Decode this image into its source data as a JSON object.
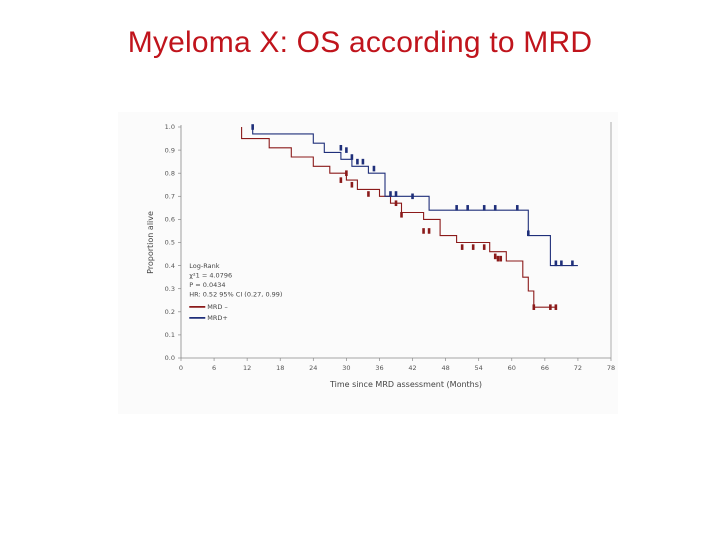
{
  "slide": {
    "title": "Myeloma X: OS according to MRD"
  },
  "chart_data": {
    "type": "line",
    "subtype": "kaplan-meier",
    "xlabel": "Time since MRD assessment (Months)",
    "ylabel": "Proportion alive",
    "xlim": [
      0,
      78
    ],
    "ylim": [
      0,
      1.0
    ],
    "x_ticks": [
      0,
      6,
      12,
      18,
      24,
      30,
      36,
      42,
      48,
      54,
      60,
      66,
      72,
      78
    ],
    "y_ticks": [
      0.0,
      0.1,
      0.2,
      0.3,
      0.4,
      0.5,
      0.6,
      0.7,
      0.8,
      0.9,
      1.0
    ],
    "y_tick_labels": [
      "0.0",
      "0.1",
      "0.2",
      "0.3",
      "0.4",
      "0.5",
      "0.6",
      "0.7",
      "0.8",
      "0.9",
      "1.0"
    ],
    "stats": {
      "title": "Log-Rank",
      "lines": [
        "χ²1 = 4.0796",
        "P = 0.0434",
        "HR: 0.52 95% CI (0.27, 0.99)"
      ]
    },
    "legend": [
      {
        "name": "MRD –",
        "color": "#8b1a1a"
      },
      {
        "name": "MRD+",
        "color": "#1f2f7a"
      }
    ],
    "series": [
      {
        "name": "MRD –",
        "color": "#8b1a1a",
        "steps": [
          [
            11,
            1.0
          ],
          [
            11,
            0.95
          ],
          [
            16,
            0.95
          ],
          [
            16,
            0.91
          ],
          [
            20,
            0.91
          ],
          [
            20,
            0.87
          ],
          [
            24,
            0.87
          ],
          [
            24,
            0.83
          ],
          [
            27,
            0.83
          ],
          [
            27,
            0.8
          ],
          [
            30,
            0.8
          ],
          [
            30,
            0.77
          ],
          [
            32,
            0.77
          ],
          [
            32,
            0.73
          ],
          [
            36,
            0.73
          ],
          [
            36,
            0.7
          ],
          [
            38,
            0.7
          ],
          [
            38,
            0.67
          ],
          [
            40,
            0.67
          ],
          [
            40,
            0.63
          ],
          [
            44,
            0.63
          ],
          [
            44,
            0.6
          ],
          [
            47,
            0.6
          ],
          [
            47,
            0.53
          ],
          [
            50,
            0.53
          ],
          [
            50,
            0.5
          ],
          [
            56,
            0.5
          ],
          [
            56,
            0.46
          ],
          [
            59,
            0.46
          ],
          [
            59,
            0.42
          ],
          [
            62,
            0.42
          ],
          [
            62,
            0.35
          ],
          [
            63,
            0.35
          ],
          [
            63,
            0.29
          ],
          [
            64,
            0.29
          ],
          [
            64,
            0.22
          ],
          [
            68,
            0.22
          ]
        ],
        "censored": [
          [
            29,
            0.77
          ],
          [
            30,
            0.8
          ],
          [
            31,
            0.75
          ],
          [
            34,
            0.71
          ],
          [
            39,
            0.67
          ],
          [
            40,
            0.62
          ],
          [
            44,
            0.55
          ],
          [
            45,
            0.55
          ],
          [
            51,
            0.48
          ],
          [
            53,
            0.48
          ],
          [
            55,
            0.48
          ],
          [
            57,
            0.44
          ],
          [
            57.5,
            0.43
          ],
          [
            58,
            0.43
          ],
          [
            64,
            0.22
          ],
          [
            67,
            0.22
          ],
          [
            68,
            0.22
          ]
        ]
      },
      {
        "name": "MRD+",
        "color": "#1f2f7a",
        "steps": [
          [
            13,
            1.0
          ],
          [
            13,
            0.97
          ],
          [
            24,
            0.97
          ],
          [
            24,
            0.93
          ],
          [
            26,
            0.93
          ],
          [
            26,
            0.89
          ],
          [
            29,
            0.89
          ],
          [
            29,
            0.86
          ],
          [
            31,
            0.86
          ],
          [
            31,
            0.83
          ],
          [
            34,
            0.83
          ],
          [
            34,
            0.8
          ],
          [
            37,
            0.8
          ],
          [
            37,
            0.7
          ],
          [
            45,
            0.7
          ],
          [
            45,
            0.64
          ],
          [
            63,
            0.64
          ],
          [
            63,
            0.53
          ],
          [
            67,
            0.53
          ],
          [
            67,
            0.4
          ],
          [
            72,
            0.4
          ]
        ],
        "censored": [
          [
            13,
            1.0
          ],
          [
            29,
            0.91
          ],
          [
            30,
            0.9
          ],
          [
            31,
            0.87
          ],
          [
            32,
            0.85
          ],
          [
            33,
            0.85
          ],
          [
            35,
            0.82
          ],
          [
            38,
            0.71
          ],
          [
            39,
            0.71
          ],
          [
            42,
            0.7
          ],
          [
            50,
            0.65
          ],
          [
            52,
            0.65
          ],
          [
            55,
            0.65
          ],
          [
            57,
            0.65
          ],
          [
            61,
            0.65
          ],
          [
            63,
            0.54
          ],
          [
            68,
            0.41
          ],
          [
            69,
            0.41
          ],
          [
            71,
            0.41
          ]
        ]
      }
    ]
  }
}
